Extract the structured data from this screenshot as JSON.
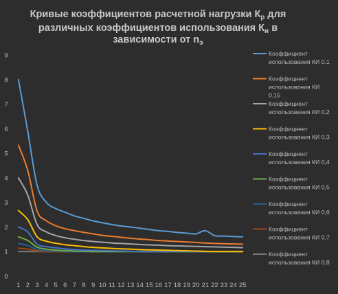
{
  "chart_data": {
    "type": "line",
    "title_lines": [
      "Кривые коэффициентов расчетной нагрузки Кр для",
      "различных коэффициентов использования Ки в",
      "зависимости от nэ"
    ],
    "title": {
      "line1_prefix": "Кривые коэффициентов расчетной нагрузки К",
      "line1_sub": "р",
      "line1_suffix": " для",
      "line2_prefix": "различных коэффициентов использования К",
      "line2_sub": "и",
      "line2_suffix": " в",
      "line3_prefix": "зависимости от n",
      "line3_sub": "э"
    },
    "xlabel": "",
    "ylabel": "",
    "x": [
      1,
      2,
      3,
      4,
      5,
      6,
      7,
      8,
      9,
      10,
      11,
      12,
      13,
      14,
      15,
      16,
      17,
      18,
      19,
      20,
      21,
      22,
      23,
      24,
      25
    ],
    "xlim": [
      0.5,
      25.5
    ],
    "ylim": [
      0,
      9
    ],
    "y_ticks": [
      0,
      1,
      2,
      3,
      4,
      5,
      6,
      7,
      8,
      9
    ],
    "grid": false,
    "legend_position": "right",
    "series": [
      {
        "name": "Коэффициент использования КИ 0,1",
        "color": "#5b9bd5",
        "values": [
          8.0,
          5.9,
          3.7,
          3.0,
          2.75,
          2.6,
          2.45,
          2.35,
          2.25,
          2.17,
          2.1,
          2.04,
          2.0,
          1.95,
          1.9,
          1.85,
          1.82,
          1.78,
          1.75,
          1.72,
          1.85,
          1.65,
          1.63,
          1.61,
          1.6
        ]
      },
      {
        "name": "Коэффициент использования КИ 0,15",
        "color": "#ed7d31",
        "values": [
          5.33,
          4.3,
          2.65,
          2.25,
          2.05,
          1.93,
          1.85,
          1.78,
          1.72,
          1.66,
          1.62,
          1.58,
          1.54,
          1.51,
          1.48,
          1.45,
          1.43,
          1.41,
          1.39,
          1.37,
          1.35,
          1.33,
          1.32,
          1.31,
          1.3
        ]
      },
      {
        "name": "Коэффициент использования КИ 0,2",
        "color": "#a5a5a5",
        "values": [
          4.0,
          3.3,
          2.1,
          1.8,
          1.65,
          1.56,
          1.5,
          1.45,
          1.41,
          1.38,
          1.35,
          1.33,
          1.31,
          1.29,
          1.27,
          1.26,
          1.24,
          1.23,
          1.22,
          1.21,
          1.2,
          1.19,
          1.18,
          1.17,
          1.16
        ]
      },
      {
        "name": "Коэффициент использования КИ 0,3",
        "color": "#ffc000",
        "values": [
          2.67,
          2.3,
          1.6,
          1.42,
          1.34,
          1.28,
          1.24,
          1.2,
          1.17,
          1.15,
          1.13,
          1.11,
          1.1,
          1.08,
          1.07,
          1.06,
          1.05,
          1.04,
          1.03,
          1.02,
          1.01,
          1.0,
          1.0,
          1.0,
          1.0
        ]
      },
      {
        "name": "Коэффициент использования КИ 0,4",
        "color": "#4472c4",
        "values": [
          2.0,
          1.8,
          1.3,
          1.2,
          1.15,
          1.11,
          1.08,
          1.06,
          1.05,
          1.04,
          1.03,
          1.02,
          1.01,
          1.0,
          1.0,
          1.0,
          1.0,
          1.0,
          1.0,
          1.0,
          1.0,
          1.0,
          1.0,
          1.0,
          1.0
        ]
      },
      {
        "name": "Коэффициент использования КИ 0,5",
        "color": "#70ad47",
        "values": [
          1.6,
          1.45,
          1.18,
          1.1,
          1.06,
          1.04,
          1.02,
          1.01,
          1.0,
          1.0,
          1.0,
          1.0,
          1.0,
          1.0,
          1.0,
          1.0,
          1.0,
          1.0,
          1.0,
          1.0,
          1.0,
          1.0,
          1.0,
          1.0,
          1.0
        ]
      },
      {
        "name": "Коэффициент использования КИ 0,6",
        "color": "#255e91",
        "values": [
          1.33,
          1.25,
          1.08,
          1.04,
          1.02,
          1.01,
          1.0,
          1.0,
          1.0,
          1.0,
          1.0,
          1.0,
          1.0,
          1.0,
          1.0,
          1.0,
          1.0,
          1.0,
          1.0,
          1.0,
          1.0,
          1.0,
          1.0,
          1.0,
          1.0
        ]
      },
      {
        "name": "Коэффициент использования КИ 0,7",
        "color": "#9e480e",
        "values": [
          1.14,
          1.1,
          1.02,
          1.0,
          1.0,
          1.0,
          1.0,
          1.0,
          1.0,
          1.0,
          1.0,
          1.0,
          1.0,
          1.0,
          1.0,
          1.0,
          1.0,
          1.0,
          1.0,
          1.0,
          1.0,
          1.0,
          1.0,
          1.0,
          1.0
        ]
      },
      {
        "name": "Коэффициент использования КИ 0,8",
        "color": "#7a7a7a",
        "values": [
          1.0,
          1.0,
          1.0,
          1.0,
          1.0,
          1.0,
          1.0,
          1.0,
          1.0,
          1.0,
          1.0,
          1.0,
          1.0,
          1.0,
          1.0,
          1.0,
          1.0,
          1.0,
          1.0,
          1.0,
          1.0,
          1.0,
          1.0,
          1.0,
          1.0
        ]
      }
    ]
  }
}
